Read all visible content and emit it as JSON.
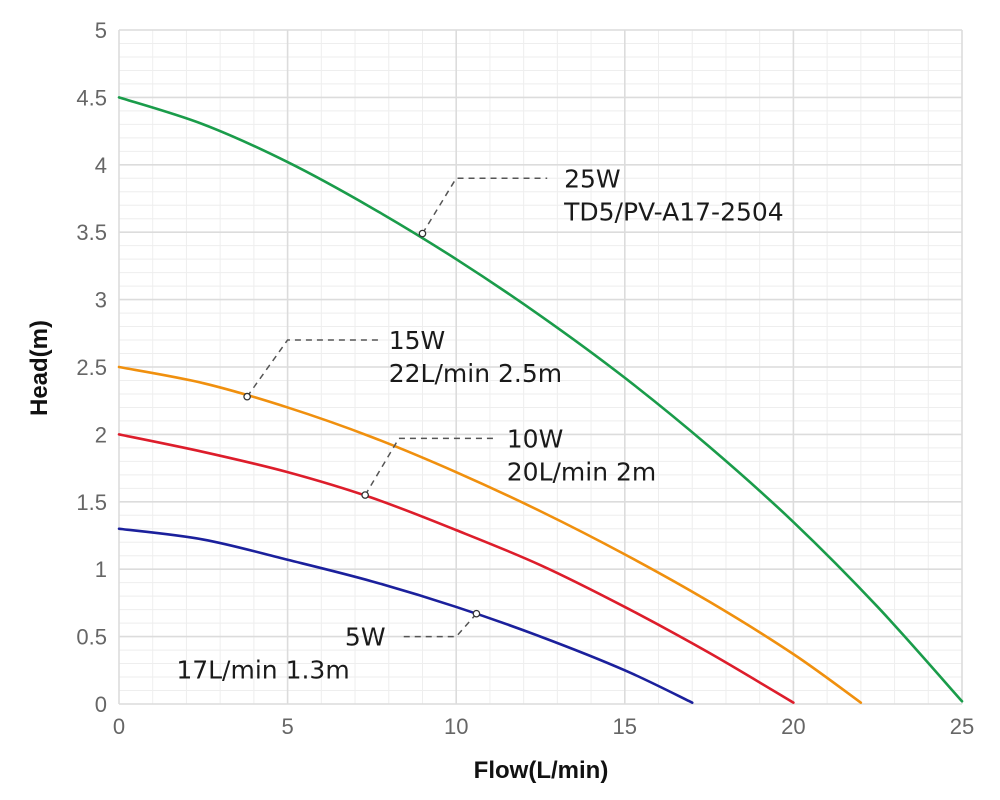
{
  "chart_data": {
    "type": "line",
    "xlabel": "Flow(L/min)",
    "ylabel": "Head(m)",
    "xlim": [
      0,
      25
    ],
    "ylim": [
      0,
      5
    ],
    "xticks": [
      0,
      5,
      10,
      15,
      20,
      25
    ],
    "yticks": [
      0,
      0.5,
      1,
      1.5,
      2,
      2.5,
      3,
      3.5,
      4,
      4.5,
      5
    ],
    "ytick_labels": [
      "0",
      "0.5",
      "1",
      "1.5",
      "2",
      "2.5",
      "3",
      "3.5",
      "4",
      "4.5",
      "5"
    ],
    "grid": true,
    "series": [
      {
        "color": "#1a9c4a",
        "x": [
          0,
          2.5,
          5,
          7.5,
          10,
          12.5,
          15,
          17.5,
          20,
          22.5,
          25
        ],
        "y": [
          4.5,
          4.3,
          4.02,
          3.68,
          3.3,
          2.88,
          2.42,
          1.91,
          1.35,
          0.72,
          0.02
        ]
      },
      {
        "color": "#f0900e",
        "x": [
          0,
          2.5,
          5,
          7.5,
          10,
          12.5,
          15,
          17.5,
          20,
          22
        ],
        "y": [
          2.5,
          2.38,
          2.2,
          1.98,
          1.72,
          1.43,
          1.11,
          0.76,
          0.37,
          0.01
        ]
      },
      {
        "color": "#dd1d2b",
        "x": [
          0,
          2.5,
          5,
          7.5,
          10,
          12.5,
          15,
          17.5,
          20
        ],
        "y": [
          2.0,
          1.87,
          1.72,
          1.53,
          1.29,
          1.03,
          0.72,
          0.38,
          0.01
        ]
      },
      {
        "color": "#1b209c",
        "x": [
          0,
          2.5,
          5,
          7.5,
          10,
          12.5,
          15,
          17
        ],
        "y": [
          1.3,
          1.22,
          1.07,
          0.91,
          0.72,
          0.5,
          0.25,
          0.01
        ]
      }
    ],
    "annotations": [
      {
        "lines": [
          "25W",
          "TD5/PV-A17-2504"
        ],
        "point": [
          9.0,
          3.49
        ],
        "elbow": [
          10.0,
          3.9
        ],
        "end": [
          12.7,
          3.9
        ],
        "text_at": [
          13.2,
          3.9
        ]
      },
      {
        "lines": [
          "15W",
          "22L/min  2.5m"
        ],
        "point": [
          3.8,
          2.28
        ],
        "elbow": [
          5.0,
          2.7
        ],
        "end": [
          7.7,
          2.7
        ],
        "text_at": [
          8.0,
          2.7
        ]
      },
      {
        "lines": [
          "10W",
          "20L/min  2m"
        ],
        "point": [
          7.3,
          1.55
        ],
        "elbow": [
          8.3,
          1.97
        ],
        "end": [
          11.2,
          1.97
        ],
        "text_at": [
          11.5,
          1.97
        ]
      },
      {
        "lines": [
          "5W",
          "17L/min  1.3m"
        ],
        "point": [
          10.6,
          0.67
        ],
        "elbow": [
          10.0,
          0.5
        ],
        "end": [
          8.3,
          0.5
        ],
        "text_at": [
          6.7,
          0.5
        ],
        "anchor": "start",
        "second_line_x": 1.7
      }
    ]
  }
}
